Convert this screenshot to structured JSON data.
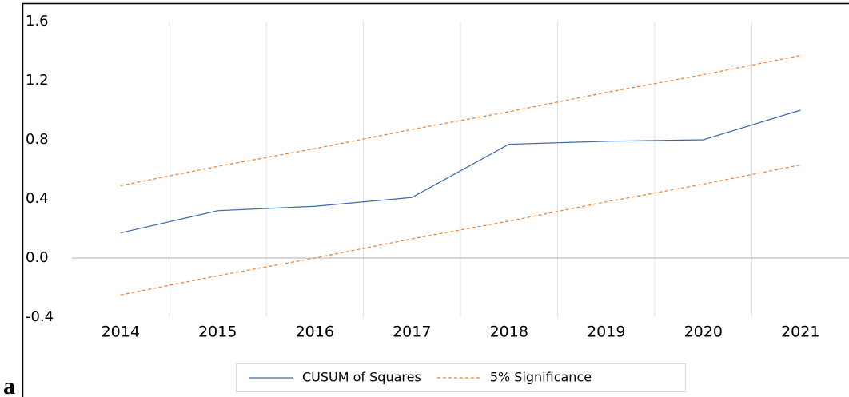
{
  "panel_label": "a",
  "chart_data": {
    "type": "line",
    "categories": [
      "2014",
      "2015",
      "2016",
      "2017",
      "2018",
      "2019",
      "2020",
      "2021"
    ],
    "series": [
      {
        "name": "CUSUM of Squares",
        "color": "#3a66a8",
        "dash": false,
        "values": [
          0.17,
          0.32,
          0.35,
          0.41,
          0.77,
          0.79,
          0.8,
          1.0
        ]
      },
      {
        "name": "5% Significance",
        "color": "#ed7d31",
        "dash": true,
        "values": [
          0.49,
          0.62,
          0.74,
          0.87,
          0.99,
          1.12,
          1.24,
          1.37
        ]
      },
      {
        "color": "#ed7d31",
        "dash": true,
        "values": [
          -0.25,
          -0.12,
          0.0,
          0.13,
          0.25,
          0.38,
          0.5,
          0.63
        ]
      }
    ],
    "ylim": [
      -0.4,
      1.6
    ],
    "yticks": [
      1.6,
      1.2,
      0.8,
      0.4,
      {
        "value": 0,
        "label": "0.0"
      },
      -0.4
    ],
    "grid": false,
    "legend": "bottom"
  }
}
